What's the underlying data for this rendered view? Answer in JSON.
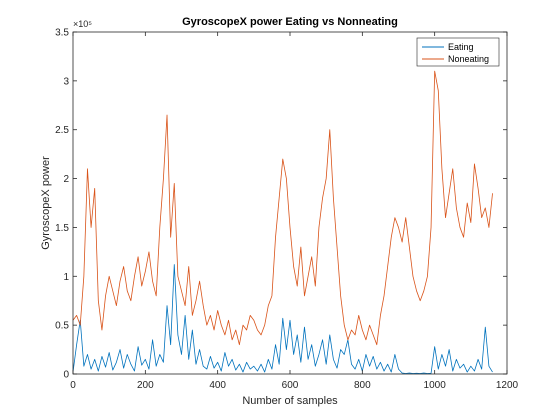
{
  "chart_data": {
    "type": "line",
    "title": "GyroscopeX power Eating vs Nonneating",
    "xlabel": "Number of samples",
    "ylabel": "GyroscopeX power",
    "xlim": [
      0,
      1200
    ],
    "ylim": [
      0,
      350000
    ],
    "x_ticks": [
      0,
      200,
      400,
      600,
      800,
      1000,
      1200
    ],
    "y_ticks": [
      0,
      50000,
      100000,
      150000,
      200000,
      250000,
      300000,
      350000
    ],
    "y_tick_labels": [
      "0",
      "0.5",
      "1",
      "1.5",
      "2",
      "2.5",
      "3",
      "3.5"
    ],
    "y_exponent_label": "×10⁵",
    "legend_position": "top-right",
    "grid": false,
    "series": [
      {
        "name": "Eating",
        "color": "#0072BD",
        "x": [
          0,
          10,
          20,
          30,
          40,
          50,
          60,
          70,
          80,
          90,
          100,
          110,
          120,
          130,
          140,
          150,
          160,
          170,
          180,
          190,
          200,
          210,
          220,
          230,
          240,
          250,
          260,
          270,
          280,
          290,
          300,
          310,
          320,
          330,
          340,
          350,
          360,
          370,
          380,
          390,
          400,
          410,
          420,
          430,
          440,
          450,
          460,
          470,
          480,
          490,
          500,
          510,
          520,
          530,
          540,
          550,
          560,
          570,
          580,
          590,
          600,
          610,
          620,
          630,
          640,
          650,
          660,
          670,
          680,
          690,
          700,
          710,
          720,
          730,
          740,
          750,
          760,
          770,
          780,
          790,
          800,
          810,
          820,
          830,
          840,
          850,
          860,
          870,
          880,
          890,
          900,
          910,
          920,
          930,
          940,
          950,
          960,
          970,
          980,
          990,
          1000,
          1010,
          1020,
          1030,
          1040,
          1050,
          1060,
          1070,
          1080,
          1090,
          1100,
          1110,
          1120,
          1130,
          1140,
          1150,
          1160
        ],
        "y": [
          2000,
          30000,
          55000,
          8000,
          20000,
          5000,
          15000,
          3000,
          18000,
          7000,
          22000,
          4000,
          12000,
          25000,
          6000,
          20000,
          10000,
          3000,
          28000,
          9000,
          15000,
          5000,
          35000,
          8000,
          20000,
          12000,
          70000,
          30000,
          112000,
          40000,
          20000,
          60000,
          15000,
          45000,
          10000,
          25000,
          8000,
          5000,
          18000,
          6000,
          12000,
          3000,
          22000,
          8000,
          15000,
          4000,
          10000,
          2000,
          12000,
          5000,
          8000,
          3000,
          10000,
          2000,
          15000,
          5000,
          30000,
          10000,
          57000,
          25000,
          55000,
          20000,
          40000,
          12000,
          48000,
          15000,
          30000,
          8000,
          20000,
          35000,
          10000,
          40000,
          15000,
          6000,
          25000,
          20000,
          35000,
          10000,
          5000,
          15000,
          3000,
          20000,
          8000,
          18000,
          5000,
          12000,
          3000,
          10000,
          2000,
          20000,
          5000,
          1000,
          500,
          1000,
          500,
          800,
          500,
          1000,
          500,
          700,
          28000,
          5000,
          20000,
          8000,
          25000,
          3000,
          15000,
          6000,
          10000,
          2000,
          8000,
          3000,
          15000,
          5000,
          48000,
          8000,
          2000
        ]
      },
      {
        "name": "Noneating",
        "color": "#D95319",
        "x": [
          0,
          10,
          20,
          30,
          40,
          50,
          60,
          70,
          80,
          90,
          100,
          110,
          120,
          130,
          140,
          150,
          160,
          170,
          180,
          190,
          200,
          210,
          220,
          230,
          240,
          250,
          260,
          270,
          280,
          290,
          300,
          310,
          320,
          330,
          340,
          350,
          360,
          370,
          380,
          390,
          400,
          410,
          420,
          430,
          440,
          450,
          460,
          470,
          480,
          490,
          500,
          510,
          520,
          530,
          540,
          550,
          560,
          570,
          580,
          590,
          600,
          610,
          620,
          630,
          640,
          650,
          660,
          670,
          680,
          690,
          700,
          710,
          720,
          730,
          740,
          750,
          760,
          770,
          780,
          790,
          800,
          810,
          820,
          830,
          840,
          850,
          860,
          870,
          880,
          890,
          900,
          910,
          920,
          930,
          940,
          950,
          960,
          970,
          980,
          990,
          1000,
          1010,
          1020,
          1030,
          1040,
          1050,
          1060,
          1070,
          1080,
          1090,
          1100,
          1110,
          1120,
          1130,
          1140,
          1150,
          1160
        ],
        "y": [
          55000,
          60000,
          50000,
          100000,
          210000,
          150000,
          190000,
          75000,
          45000,
          80000,
          100000,
          85000,
          70000,
          95000,
          110000,
          85000,
          75000,
          100000,
          120000,
          90000,
          105000,
          125000,
          95000,
          80000,
          150000,
          200000,
          265000,
          140000,
          195000,
          100000,
          85000,
          70000,
          110000,
          60000,
          75000,
          95000,
          70000,
          50000,
          60000,
          45000,
          65000,
          50000,
          40000,
          55000,
          35000,
          45000,
          30000,
          50000,
          45000,
          60000,
          55000,
          45000,
          40000,
          50000,
          70000,
          80000,
          140000,
          180000,
          220000,
          200000,
          150000,
          110000,
          90000,
          130000,
          80000,
          100000,
          120000,
          90000,
          150000,
          180000,
          200000,
          250000,
          180000,
          130000,
          80000,
          50000,
          35000,
          45000,
          40000,
          60000,
          45000,
          35000,
          50000,
          40000,
          30000,
          60000,
          80000,
          110000,
          140000,
          160000,
          150000,
          135000,
          160000,
          130000,
          100000,
          85000,
          75000,
          85000,
          100000,
          150000,
          310000,
          290000,
          210000,
          160000,
          185000,
          210000,
          170000,
          150000,
          140000,
          175000,
          155000,
          215000,
          190000,
          160000,
          170000,
          150000,
          185000
        ]
      }
    ]
  }
}
